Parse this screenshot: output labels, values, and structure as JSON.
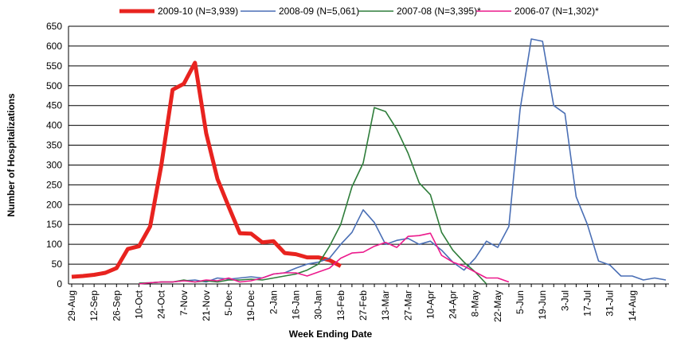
{
  "chart_data": {
    "type": "line",
    "x_label": "Week Ending Date",
    "y_label": "Number of Hospitalizations",
    "categories": [
      "29-Aug",
      null,
      "12-Sep",
      null,
      "26-Sep",
      null,
      "10-Oct",
      null,
      "24-Oct",
      null,
      "7-Nov",
      null,
      "21-Nov",
      null,
      "5-Dec",
      null,
      "19-Dec",
      null,
      "2-Jan",
      null,
      "16-Jan",
      null,
      "30-Jan",
      null,
      "13-Feb",
      null,
      "27-Feb",
      null,
      "13-Mar",
      null,
      "27-Mar",
      null,
      "10-Apr",
      null,
      "24-Apr",
      null,
      "8-May",
      null,
      "22-May",
      null,
      "5-Jun",
      null,
      "19-Jun",
      null,
      "3-Jul",
      null,
      "17-Jul",
      null,
      "31-Jul",
      null,
      "14-Aug",
      null,
      null,
      null
    ],
    "ylim": [
      0,
      650
    ],
    "yticks": [
      0,
      50,
      100,
      150,
      200,
      250,
      300,
      350,
      400,
      450,
      500,
      550,
      600,
      650
    ],
    "grid": true,
    "legend": "top",
    "series": [
      {
        "name": "2009-10 (N=3,939)",
        "color": "#e8231f",
        "width": 5,
        "values": [
          18,
          20,
          23,
          28,
          40,
          88,
          95,
          145,
          300,
          490,
          505,
          558,
          380,
          265,
          195,
          128,
          127,
          105,
          108,
          78,
          75,
          67,
          67,
          60,
          45,
          null,
          null,
          null,
          null,
          null,
          null,
          null,
          null,
          null,
          null,
          null,
          null,
          null,
          null,
          null,
          null,
          null,
          null,
          null,
          null,
          null,
          null,
          null,
          null,
          null,
          null,
          null,
          null,
          null
        ]
      },
      {
        "name": "2008-09 (N=5,061)",
        "color": "#4a6fb5",
        "width": 1.6,
        "values": [
          null,
          null,
          null,
          null,
          null,
          null,
          2,
          3,
          5,
          5,
          8,
          10,
          5,
          15,
          12,
          15,
          18,
          15,
          25,
          28,
          40,
          50,
          55,
          65,
          100,
          130,
          187,
          155,
          100,
          110,
          115,
          100,
          108,
          85,
          55,
          35,
          65,
          108,
          92,
          145,
          440,
          618,
          612,
          450,
          430,
          220,
          150,
          58,
          48,
          20,
          20,
          10,
          15,
          10
        ]
      },
      {
        "name": "2007-08 (N=3,395)*",
        "color": "#2e7d3a",
        "width": 1.6,
        "values": [
          null,
          null,
          null,
          null,
          null,
          null,
          2,
          3,
          5,
          5,
          10,
          5,
          8,
          5,
          10,
          10,
          12,
          10,
          15,
          20,
          25,
          35,
          50,
          95,
          150,
          245,
          305,
          445,
          435,
          390,
          330,
          255,
          225,
          130,
          85,
          55,
          30,
          0,
          null,
          null,
          null,
          null,
          null,
          null,
          null,
          null,
          null,
          null,
          null,
          null,
          null,
          null,
          null,
          null
        ]
      },
      {
        "name": "2006-07 (N=1,302)*",
        "color": "#ec1a8c",
        "width": 1.6,
        "values": [
          null,
          null,
          null,
          null,
          null,
          null,
          0,
          3,
          5,
          5,
          8,
          5,
          10,
          8,
          15,
          5,
          8,
          15,
          25,
          28,
          28,
          20,
          30,
          40,
          65,
          78,
          80,
          95,
          105,
          92,
          120,
          122,
          128,
          72,
          55,
          45,
          30,
          15,
          15,
          5,
          null,
          null,
          null,
          null,
          null,
          null,
          null,
          null,
          null,
          null,
          null,
          null,
          null,
          null
        ]
      }
    ]
  }
}
